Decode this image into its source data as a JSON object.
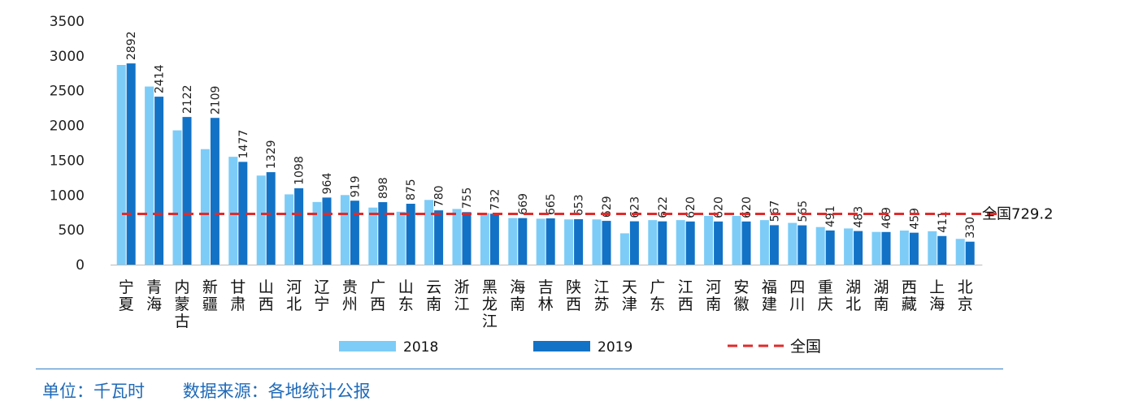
{
  "chart_data": {
    "type": "bar",
    "categories": [
      "宁夏",
      "青海",
      "内蒙古",
      "新疆",
      "甘肃",
      "山西",
      "河北",
      "辽宁",
      "贵州",
      "广西",
      "山东",
      "云南",
      "浙江",
      "黑龙江",
      "海南",
      "吉林",
      "陕西",
      "江苏",
      "天津",
      "广东",
      "江西",
      "河南",
      "安徽",
      "福建",
      "四川",
      "重庆",
      "湖北",
      "湖南",
      "西藏",
      "上海",
      "北京"
    ],
    "series": [
      {
        "name": "2018",
        "color": "#7dccf8",
        "values": [
          2870,
          2560,
          1930,
          1660,
          1550,
          1280,
          1010,
          900,
          1000,
          820,
          760,
          930,
          800,
          740,
          670,
          660,
          650,
          650,
          450,
          640,
          640,
          700,
          700,
          640,
          600,
          540,
          520,
          470,
          490,
          480,
          370
        ]
      },
      {
        "name": "2019",
        "color": "#1272c6",
        "values": [
          2892,
          2414,
          2122,
          2109,
          1477,
          1329,
          1098,
          964,
          919,
          898,
          875,
          780,
          755,
          732,
          669,
          665,
          653,
          629,
          623,
          622,
          620,
          620,
          620,
          567,
          565,
          491,
          483,
          469,
          459,
          411,
          330
        ]
      }
    ],
    "data_labels": [
      "2892",
      "2414",
      "2122",
      "2109",
      "1477",
      "1329",
      "1098",
      "964",
      "919",
      "898",
      "875",
      "780",
      "755",
      "732",
      "669",
      "665",
      "653",
      "629",
      "623",
      "622",
      "620",
      "620",
      "620",
      "567",
      "565",
      "491",
      "483",
      "469",
      "459",
      "411",
      "330"
    ],
    "reference_line": {
      "name": "全国",
      "value": 729.2,
      "label": "全国729.2",
      "color": "#e02b2b"
    },
    "ylim": [
      0,
      3500
    ],
    "yticks": [
      "0",
      "500",
      "1000",
      "1500",
      "2000",
      "2500",
      "3000",
      "3500"
    ],
    "grid": false,
    "legend_position": "bottom"
  },
  "footer": {
    "unit": "单位：千瓦时",
    "source": "数据来源：各地统计公报"
  }
}
